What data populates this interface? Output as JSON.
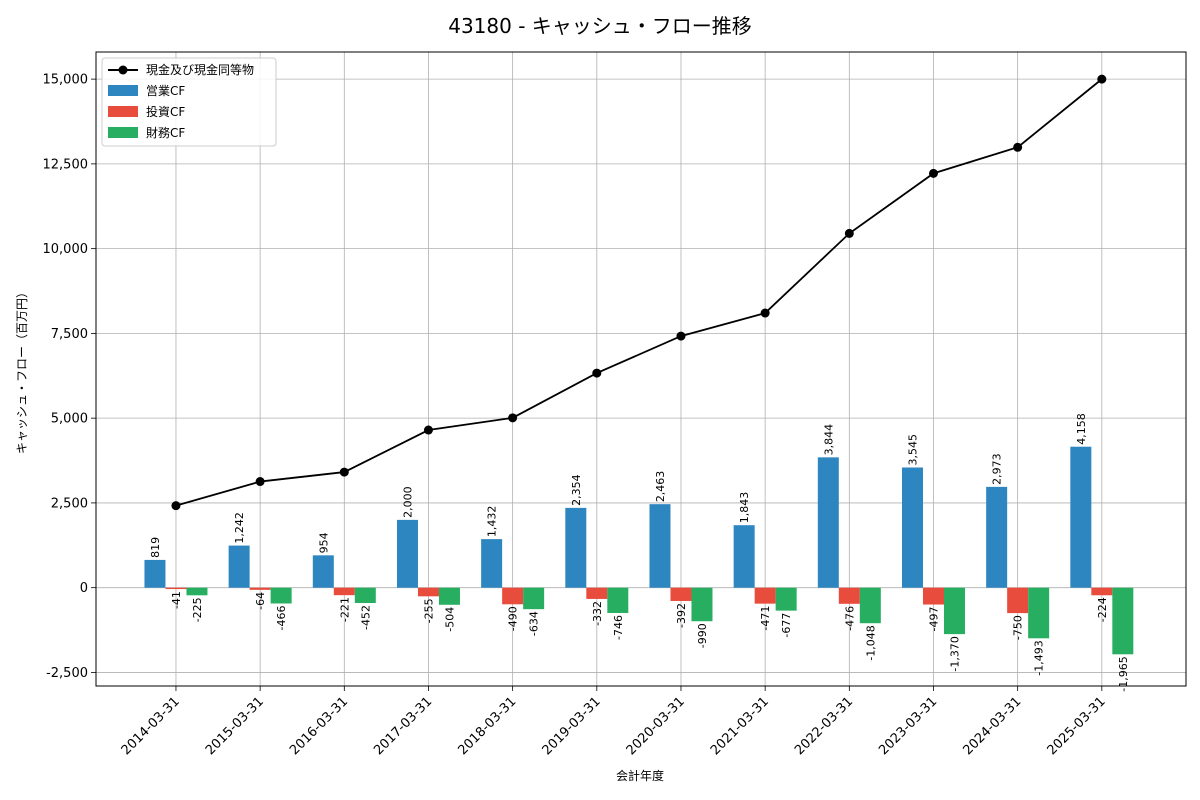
{
  "chart_data": {
    "type": "bar",
    "title": "43180 - キャッシュ・フロー推移",
    "xlabel": "会計年度",
    "ylabel": "キャッシュ・フロー（百万円）",
    "ylim": [
      -2900,
      15800
    ],
    "yticks": [
      -2500,
      0,
      2500,
      5000,
      7500,
      10000,
      12500,
      15000
    ],
    "ytick_labels": [
      "-2,500",
      "0",
      "2,500",
      "5,000",
      "7,500",
      "10,000",
      "12,500",
      "15,000"
    ],
    "grid": true,
    "legend_position": "top-left",
    "categories": [
      "2014-03-31",
      "2015-03-31",
      "2016-03-31",
      "2017-03-31",
      "2018-03-31",
      "2019-03-31",
      "2020-03-31",
      "2021-03-31",
      "2022-03-31",
      "2023-03-31",
      "2024-03-31",
      "2025-03-31"
    ],
    "series": [
      {
        "name": "営業CF",
        "kind": "bar",
        "color": "#2e86c1",
        "values": [
          819,
          1242,
          954,
          2000,
          1432,
          2354,
          2463,
          1843,
          3844,
          3545,
          2973,
          4158
        ],
        "labels": [
          "819",
          "1,242",
          "954",
          "2,000",
          "1,432",
          "2,354",
          "2,463",
          "1,843",
          "3,844",
          "3,545",
          "2,973",
          "4,158"
        ]
      },
      {
        "name": "投資CF",
        "kind": "bar",
        "color": "#e74c3c",
        "values": [
          -41,
          -64,
          -221,
          -255,
          -490,
          -332,
          -392,
          -471,
          -476,
          -497,
          -750,
          -224
        ],
        "labels": [
          "-41",
          "-64",
          "-221",
          "-255",
          "-490",
          "-332",
          "-392",
          "-471",
          "-476",
          "-497",
          "-750",
          "-224"
        ]
      },
      {
        "name": "財務CF",
        "kind": "bar",
        "color": "#27ae60",
        "values": [
          -225,
          -466,
          -452,
          -504,
          -634,
          -746,
          -990,
          -677,
          -1048,
          -1370,
          -1493,
          -1965
        ],
        "labels": [
          "-225",
          "-466",
          "-452",
          "-504",
          "-634",
          "-746",
          "-990",
          "-677",
          "-1,048",
          "-1,370",
          "-1,493",
          "-1,965"
        ]
      },
      {
        "name": "現金及び現金同等物",
        "kind": "line",
        "color": "#000000",
        "values": [
          2420,
          3130,
          3410,
          4650,
          5010,
          6330,
          7420,
          8100,
          10450,
          12220,
          12990,
          15000
        ]
      }
    ]
  }
}
